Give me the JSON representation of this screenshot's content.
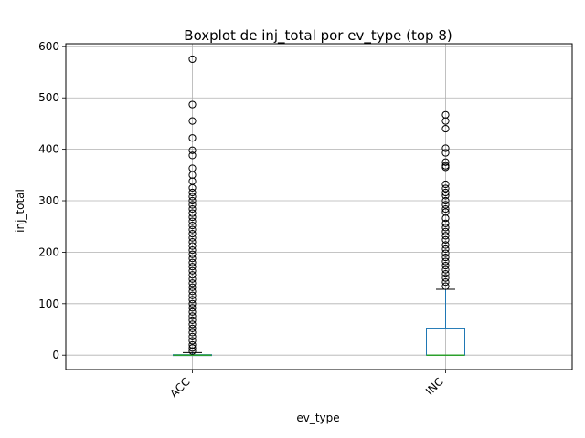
{
  "chart_data": {
    "type": "box",
    "title": "Boxplot de inj_total por ev_type (top 8)",
    "xlabel": "ev_type",
    "ylabel": "inj_total",
    "ylim": [
      -28,
      605
    ],
    "yticks": [
      0,
      100,
      200,
      300,
      400,
      500,
      600
    ],
    "grid": true,
    "categories": [
      "ACC",
      "INC"
    ],
    "series": [
      {
        "category": "ACC",
        "whisker_low": 0,
        "q1": 0,
        "median": 0,
        "q3": 1,
        "whisker_high": 5,
        "outliers": [
          575,
          487,
          455,
          422,
          398,
          388,
          363,
          350,
          338,
          325,
          316,
          308,
          300,
          292,
          284,
          276,
          268,
          260,
          252,
          244,
          236,
          228,
          220,
          212,
          204,
          196,
          188,
          180,
          172,
          164,
          156,
          148,
          140,
          132,
          124,
          116,
          108,
          100,
          92,
          84,
          76,
          68,
          60,
          52,
          44,
          36,
          28,
          20,
          14,
          8
        ]
      },
      {
        "category": "INC",
        "whisker_low": 0,
        "q1": 0,
        "median": 0,
        "q3": 51,
        "whisker_high": 128,
        "outliers": [
          467,
          455,
          440,
          402,
          393,
          375,
          368,
          365,
          332,
          324,
          316,
          310,
          300,
          292,
          284,
          278,
          266,
          256,
          248,
          240,
          232,
          224,
          214,
          206,
          198,
          190,
          182,
          174,
          166,
          158,
          150,
          142,
          134
        ]
      }
    ]
  }
}
